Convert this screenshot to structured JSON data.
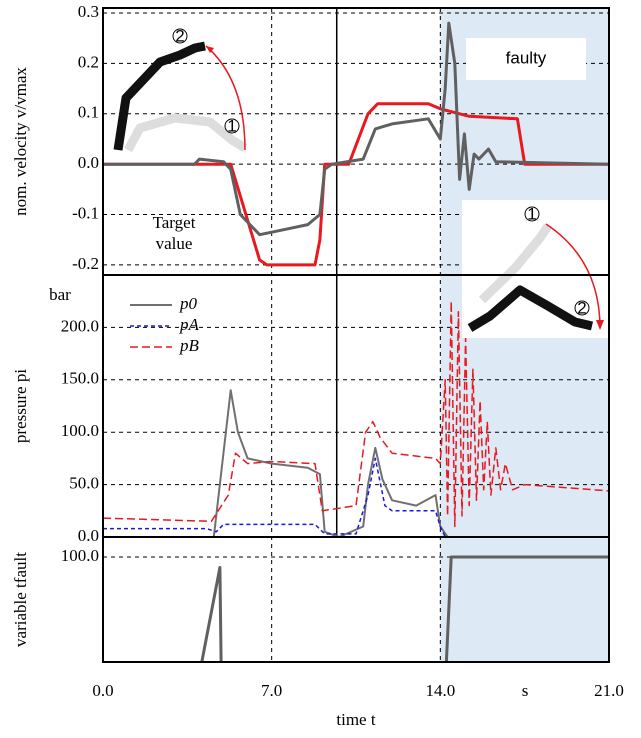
{
  "chart_data": [
    {
      "type": "line",
      "y_label": "nom. velocity v/vmax",
      "xlim": [
        0,
        21
      ],
      "ylim": [
        -0.22,
        0.31
      ],
      "yticks": [
        0.3,
        0.2,
        0.1,
        {
          "value": 0,
          "label": "0.0"
        },
        -0.1,
        -0.2
      ],
      "grid": true,
      "vline": 9.7,
      "highlight": {
        "from": 14,
        "to": 21,
        "label": "faulty",
        "color": "#dde9f5"
      },
      "annotations": [
        "Target",
        "value"
      ],
      "inset_labels": [
        [
          "2",
          "1"
        ],
        [
          "1",
          "2"
        ]
      ],
      "series": [
        {
          "color": "#e8191f",
          "width": 3,
          "x": [
            0,
            5.3,
            6.5,
            6.8,
            8.8,
            9.0,
            9.2,
            10.2,
            11.0,
            11.4,
            13.5,
            14.0,
            15.2,
            17.2,
            17.5,
            21
          ],
          "values": [
            0,
            0,
            -0.19,
            -0.2,
            -0.2,
            -0.15,
            0,
            0,
            0.1,
            0.12,
            0.12,
            0.11,
            0.095,
            0.09,
            0,
            0
          ]
        },
        {
          "color": "#606060",
          "width": 3,
          "x": [
            0,
            3.8,
            4.0,
            5.0,
            5.3,
            5.7,
            6.5,
            7.5,
            8.5,
            9.0,
            9.2,
            9.5,
            10.8,
            11.3,
            12.0,
            13.5,
            14.0,
            14.2,
            14.35,
            14.6,
            14.8,
            15.0,
            15.2,
            15.4,
            15.6,
            16.0,
            16.3,
            21
          ],
          "values": [
            0,
            0,
            0.01,
            0.005,
            -0.01,
            -0.1,
            -0.14,
            -0.13,
            -0.12,
            -0.1,
            -0.01,
            0,
            0.01,
            0.07,
            0.08,
            0.09,
            0.05,
            0.15,
            0.28,
            0.2,
            -0.03,
            0.06,
            -0.05,
            0.02,
            0.01,
            0.03,
            0.005,
            0
          ]
        }
      ]
    },
    {
      "type": "line",
      "y_label": "pressure pi",
      "unit": "bar",
      "xlim": [
        0,
        21
      ],
      "ylim": [
        0,
        250
      ],
      "yticks": [
        {
          "value": 200,
          "label": "200.0"
        },
        {
          "value": 150,
          "label": "150.0"
        },
        {
          "value": 100,
          "label": "100.0"
        },
        {
          "value": 50,
          "label": "50.0"
        },
        {
          "value": 0,
          "label": "0.0"
        }
      ],
      "grid": true,
      "vline": 9.7,
      "series": [
        {
          "name": "p0",
          "color": "#707070",
          "width": 2,
          "dash": "",
          "x": [
            0,
            4.6,
            5.3,
            5.6,
            6.0,
            7.0,
            8.5,
            9.0,
            9.2,
            9.8,
            10.8,
            11.0,
            11.3,
            11.6,
            12.0,
            13.0,
            13.8,
            14.0,
            14.3,
            21
          ],
          "values": [
            0,
            0,
            140,
            100,
            75,
            70,
            66,
            60,
            5,
            0,
            10,
            50,
            85,
            55,
            35,
            30,
            40,
            10,
            0,
            0
          ]
        },
        {
          "name": "pA",
          "color": "#1a1adc",
          "width": 1.5,
          "dash": "4 3",
          "x": [
            0,
            4.3,
            4.7,
            5.0,
            8.8,
            9.2,
            10.5,
            11.0,
            11.3,
            11.7,
            12.0,
            13.8,
            14.0,
            14.2,
            21
          ],
          "values": [
            8,
            8,
            5,
            12,
            12,
            3,
            3,
            40,
            75,
            30,
            25,
            25,
            10,
            0,
            0
          ]
        },
        {
          "name": "pB",
          "color": "#e8191f",
          "width": 1.5,
          "dash": "8 4",
          "x": [
            0,
            4.5,
            5.2,
            5.5,
            6.0,
            7.0,
            8.8,
            9.1,
            10.5,
            10.9,
            11.2,
            11.5,
            12.0,
            13.8,
            14.0,
            14.2,
            14.3,
            14.45,
            14.6,
            14.75,
            14.9,
            15.05,
            15.2,
            15.35,
            15.5,
            15.65,
            15.8,
            15.95,
            16.1,
            16.3,
            16.5,
            16.7,
            17.0,
            17.5,
            21
          ],
          "values": [
            18,
            15,
            40,
            80,
            70,
            72,
            70,
            25,
            30,
            100,
            110,
            95,
            80,
            75,
            70,
            150,
            20,
            225,
            10,
            215,
            20,
            190,
            30,
            160,
            35,
            130,
            45,
            110,
            40,
            85,
            45,
            70,
            45,
            50,
            44
          ]
        }
      ]
    },
    {
      "type": "line",
      "y_label": "variable tfault",
      "x_label": "time t",
      "x_unit": "s",
      "xlim": [
        0,
        21
      ],
      "ylim": [
        0,
        119
      ],
      "xticks": [
        {
          "value": 0,
          "label": "0.0"
        },
        {
          "value": 7,
          "label": "7.0"
        },
        {
          "value": 14,
          "label": "14.0"
        },
        {
          "value": 21,
          "label": "21.0"
        }
      ],
      "yticks": [
        {
          "value": 100,
          "label": "100.0"
        }
      ],
      "grid": true,
      "series": [
        {
          "color": "#606060",
          "width": 3,
          "x": [
            4.1,
            4.85,
            4.9,
            10,
            14.25,
            14.45,
            21
          ],
          "values": [
            0,
            90,
            0,
            null,
            0,
            100,
            100
          ]
        }
      ]
    }
  ]
}
